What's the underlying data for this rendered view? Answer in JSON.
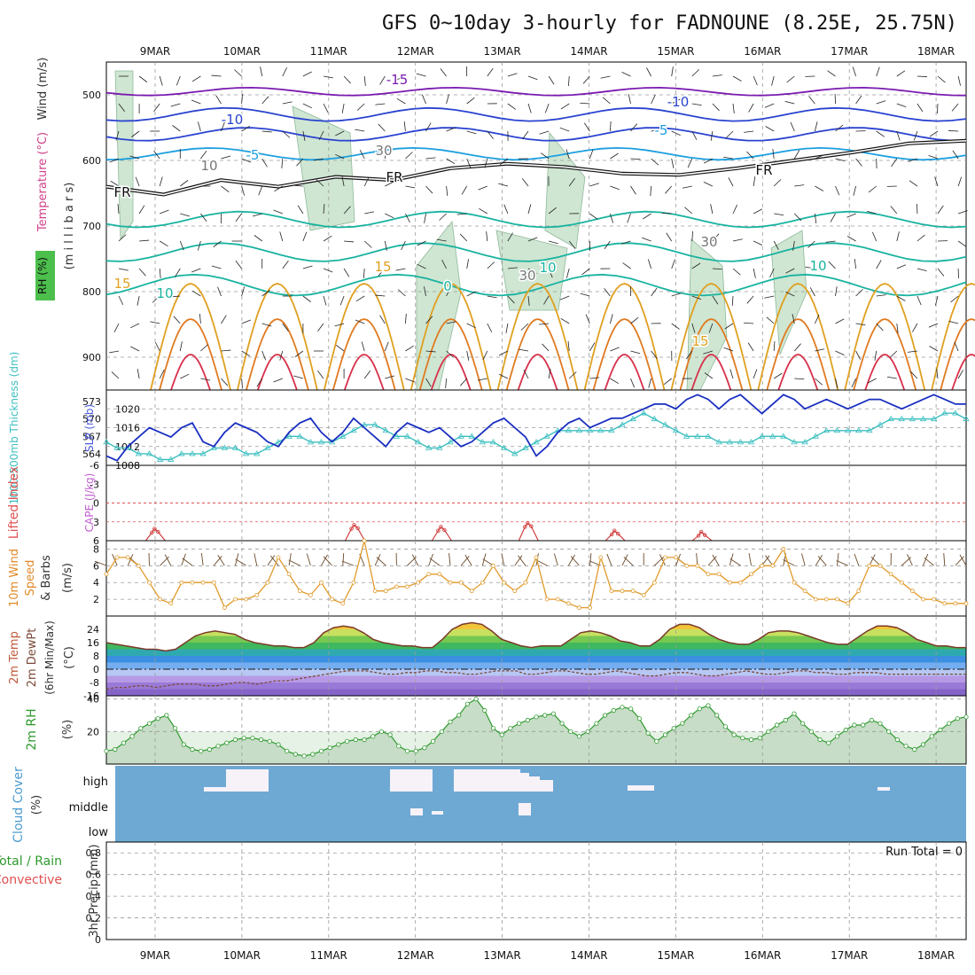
{
  "title": "GFS 0~10day 3-hourly for FADNOUNE (8.25E, 25.75N)",
  "colors": {
    "grid": "#9a9a9a",
    "wind_barb": "#222222",
    "sfc_barb": "#6b4a2a",
    "rh_fill": "#cfe6d2",
    "cloud_bg": "#6ea9d4",
    "cloud_fill": "#f6f2f8",
    "slp": "#1a2fc0",
    "thickness": "#3cbfc0",
    "wind_speed": "#e09a2a",
    "rh_line": "#2e9a2e",
    "dewpt": "#7a4a3a",
    "lifted_index": "#d03030"
  },
  "chart_data": [
    {
      "panel": "upper-air",
      "type": "line",
      "x_ticks": [
        "9MAR",
        "10MAR",
        "11MAR",
        "12MAR",
        "13MAR",
        "14MAR",
        "15MAR",
        "16MAR",
        "17MAR",
        "18MAR"
      ],
      "y_ticks": [
        "500",
        "600",
        "700",
        "800",
        "900"
      ],
      "ylabel": "(m i l l i b a r s)",
      "ylabel_wind": "Wind (m/s)",
      "ylabel_temp": "Temperature (°C)",
      "ylabel_rh": "RH (%)",
      "ylim": [
        450,
        950
      ],
      "contour_labels": [
        "-15",
        "-10",
        "-10",
        "-5",
        "-5",
        "FR",
        "FR",
        "FR",
        "10",
        "10",
        "10",
        "15",
        "15",
        "15",
        "10",
        "30",
        "30",
        "30",
        "0"
      ],
      "freezing_level": [
        640,
        652,
        630,
        640,
        625,
        630,
        612,
        605,
        610,
        620,
        622,
        612,
        600,
        588,
        574,
        570
      ]
    },
    {
      "panel": "slp-thickness",
      "type": "line",
      "ylabel_left": "1000-500mb Thickness (dm)",
      "ylabel_right": "SLP (mb)",
      "left_ticks": [
        "573",
        "570",
        "567",
        "564"
      ],
      "right_ticks": [
        "1020",
        "1016",
        "1012",
        "1008"
      ],
      "series": [
        {
          "name": "SLP (mb)",
          "values": [
            1010,
            1009,
            1012,
            1014,
            1016,
            1015,
            1014,
            1016,
            1017,
            1013,
            1012,
            1015,
            1017,
            1016,
            1015,
            1013,
            1012,
            1015,
            1017,
            1018,
            1015,
            1013,
            1015,
            1018,
            1016,
            1014,
            1012,
            1015,
            1017,
            1016,
            1015,
            1016,
            1014,
            1012,
            1013,
            1015,
            1017,
            1018,
            1016,
            1014,
            1010,
            1012,
            1015,
            1017,
            1018,
            1016,
            1017,
            1018,
            1018,
            1019,
            1020,
            1021,
            1021,
            1020,
            1022,
            1023,
            1022,
            1020,
            1022,
            1023,
            1021,
            1019,
            1021,
            1023,
            1022,
            1020,
            1021,
            1022,
            1021,
            1020,
            1021,
            1022,
            1022,
            1021,
            1020,
            1021,
            1022,
            1023,
            1022,
            1021,
            1021
          ]
        },
        {
          "name": "Thickness (dm)",
          "values": [
            566,
            565,
            565,
            564,
            564,
            563,
            563,
            564,
            564,
            564,
            565,
            565,
            565,
            564,
            564,
            565,
            566,
            567,
            567,
            566,
            566,
            566,
            567,
            568,
            569,
            569,
            568,
            567,
            567,
            566,
            565,
            565,
            566,
            567,
            567,
            566,
            566,
            565,
            564,
            565,
            566,
            567,
            568,
            568,
            568,
            568,
            568,
            568,
            569,
            570,
            571,
            570,
            569,
            568,
            567,
            567,
            567,
            566,
            566,
            566,
            566,
            567,
            567,
            567,
            566,
            566,
            567,
            568,
            568,
            568,
            568,
            568,
            569,
            570,
            570,
            570,
            570,
            570,
            571,
            571,
            570
          ]
        }
      ]
    },
    {
      "panel": "stability",
      "type": "line",
      "ylabel_left": "Lifted Index",
      "ylabel_right": "CAPE (J/kg)",
      "y_ticks": [
        "-6",
        "-3",
        "0",
        "3",
        "6"
      ],
      "ylim": [
        -6,
        6
      ],
      "lifted_index_peaks": [
        {
          "x": 0.3,
          "value": 4.1
        },
        {
          "x": 2.6,
          "value": 3.5
        },
        {
          "x": 3.6,
          "value": 3.8
        },
        {
          "x": 4.6,
          "value": 3.2
        },
        {
          "x": 5.6,
          "value": 4.4
        },
        {
          "x": 6.6,
          "value": 4.6
        }
      ]
    },
    {
      "panel": "surface-wind",
      "type": "line",
      "ylabel": "10m Wind Speed & Barbs",
      "y_unit": "(m/s)",
      "y_ticks": [
        "8",
        "6",
        "4",
        "2"
      ],
      "ylim": [
        0,
        9
      ],
      "series": [
        {
          "name": "10m Wind Speed",
          "values": [
            5,
            7,
            7,
            6,
            4,
            2,
            1.5,
            4,
            4,
            4,
            4,
            1,
            2,
            2,
            2.5,
            4,
            7,
            5,
            3,
            2.5,
            4,
            2,
            1.5,
            4,
            9,
            3,
            3,
            3.5,
            3.5,
            4,
            5,
            5,
            4,
            4,
            3,
            4,
            6,
            4,
            3,
            4,
            7,
            2,
            2,
            1.5,
            1,
            1,
            7,
            3,
            3,
            3,
            2.5,
            4,
            7,
            7,
            6,
            6,
            5,
            5,
            4,
            4,
            5,
            6,
            6,
            8,
            4,
            3,
            2,
            2,
            2,
            1.5,
            3,
            6,
            6,
            5,
            4,
            3,
            2,
            2,
            1.5,
            1.5,
            1.5
          ]
        }
      ]
    },
    {
      "panel": "temperature",
      "type": "area",
      "ylabel": "2m Temp 2m DewPt (6hr Min/Max) (°C)",
      "y_ticks": [
        "24",
        "16",
        "8",
        "0",
        "-8",
        "-16"
      ],
      "ylim": [
        -16,
        32
      ],
      "series": [
        {
          "name": "2m Temp",
          "values": [
            16,
            15,
            14,
            13,
            12,
            12,
            11,
            12,
            16,
            20,
            22,
            23,
            22,
            21,
            18,
            16,
            15,
            14,
            14,
            13,
            13,
            16,
            22,
            25,
            26,
            25,
            22,
            18,
            16,
            15,
            14,
            14,
            13,
            13,
            18,
            24,
            27,
            28,
            27,
            23,
            18,
            16,
            14,
            13,
            14,
            14,
            14,
            18,
            22,
            23,
            22,
            20,
            17,
            16,
            14,
            14,
            18,
            24,
            27,
            27,
            25,
            21,
            18,
            16,
            15,
            15,
            18,
            22,
            23,
            23,
            22,
            20,
            18,
            16,
            15,
            15,
            19,
            23,
            26,
            26,
            25,
            22,
            18,
            16,
            14,
            14,
            13,
            13
          ]
        },
        {
          "name": "2m DewPt",
          "values": [
            -12,
            -11,
            -11,
            -10,
            -10,
            -11,
            -10,
            -9,
            -9,
            -9,
            -10,
            -10,
            -9,
            -8,
            -8,
            -9,
            -8,
            -7,
            -7,
            -6,
            -5,
            -4,
            -3,
            -2,
            -1,
            -1,
            -1,
            -2,
            -3,
            -3,
            -2,
            -2,
            -1,
            -1,
            -2,
            -2,
            -3,
            -3,
            -2,
            -1,
            -1,
            -1,
            -3,
            -3,
            -2,
            -1,
            -1,
            -2,
            -3,
            -3,
            -2,
            -1,
            -2,
            -3,
            -4,
            -4,
            -3,
            -2,
            -2,
            -3,
            -4,
            -4,
            -3,
            -2,
            -1,
            -2,
            -3,
            -3,
            -2,
            -1,
            -1,
            -2,
            -2,
            -3,
            -3,
            -2,
            -2,
            -2,
            -3,
            -3,
            -3,
            -3,
            -3,
            -3,
            -3,
            -3,
            -3
          ]
        }
      ]
    },
    {
      "panel": "relative-humidity",
      "type": "area",
      "ylabel": "2m RH",
      "y_unit": "(%)",
      "y_ticks": [
        "40",
        "20"
      ],
      "ylim": [
        0,
        42
      ],
      "series": [
        {
          "name": "2m RH",
          "values": [
            8,
            9,
            13,
            17,
            22,
            25,
            28,
            30,
            22,
            12,
            9,
            8,
            9,
            11,
            13,
            15,
            16,
            16,
            15,
            14,
            12,
            8,
            6,
            5,
            6,
            8,
            10,
            12,
            14,
            15,
            15,
            17,
            20,
            18,
            11,
            8,
            8,
            10,
            14,
            20,
            26,
            30,
            37,
            40,
            33,
            22,
            18,
            22,
            25,
            27,
            29,
            30,
            31,
            25,
            20,
            17,
            20,
            25,
            30,
            33,
            35,
            34,
            28,
            19,
            14,
            18,
            22,
            25,
            30,
            34,
            36,
            30,
            23,
            18,
            16,
            15,
            16,
            20,
            24,
            27,
            31,
            25,
            20,
            15,
            13,
            17,
            21,
            24,
            24,
            27,
            25,
            20,
            15,
            11,
            9,
            12,
            17,
            21,
            25,
            28,
            29
          ]
        }
      ]
    },
    {
      "panel": "cloud-cover",
      "type": "area",
      "ylabel": "Cloud Cover",
      "y_unit": "(%)",
      "y_ticks": [
        "high",
        "middle",
        "low"
      ]
    },
    {
      "panel": "precipitation",
      "type": "bar",
      "ylabel": "3hr Precip (mm)",
      "legend_total": "Total / Rain",
      "legend_convective": "Convective",
      "run_total": "Run Total = 0",
      "y_ticks": [
        "0.8",
        "0.6",
        "0.4",
        "0.2",
        "0"
      ],
      "ylim": [
        0,
        0.9
      ]
    }
  ]
}
